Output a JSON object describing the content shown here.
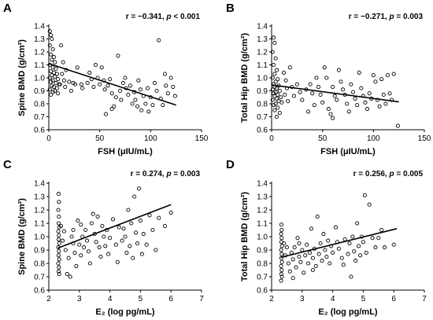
{
  "chart_data": [
    {
      "letter": "A",
      "type": "scatter",
      "xlabel": "FSH (μIU/mL)",
      "ylabel": "Spine BMD (g/cm²)",
      "stat": {
        "r": "r = −0.341, ",
        "p": "p",
        "rest": " < 0.001"
      },
      "xlim": [
        0,
        150
      ],
      "ylim": [
        0.6,
        1.4
      ],
      "xticks": [
        0,
        50,
        100,
        150
      ],
      "yticks": [
        0.6,
        0.7,
        0.8,
        0.9,
        1.0,
        1.1,
        1.2,
        1.3,
        1.4
      ],
      "fit": [
        [
          0,
          1.11
        ],
        [
          125,
          0.79
        ]
      ],
      "points": [
        [
          1,
          1.36
        ],
        [
          2,
          1.33
        ],
        [
          3,
          1.3
        ],
        [
          1,
          1.25
        ],
        [
          4,
          1.22
        ],
        [
          2,
          1.18
        ],
        [
          5,
          1.16
        ],
        [
          3,
          1.14
        ],
        [
          6,
          1.12
        ],
        [
          1,
          1.1
        ],
        [
          4,
          1.08
        ],
        [
          7,
          1.07
        ],
        [
          2,
          1.05
        ],
        [
          5,
          1.04
        ],
        [
          8,
          1.03
        ],
        [
          3,
          1.02
        ],
        [
          6,
          1.01
        ],
        [
          1,
          1.0
        ],
        [
          9,
          0.99
        ],
        [
          4,
          0.98
        ],
        [
          2,
          0.97
        ],
        [
          7,
          0.96
        ],
        [
          10,
          0.95
        ],
        [
          3,
          0.94
        ],
        [
          5,
          0.93
        ],
        [
          8,
          0.92
        ],
        [
          1,
          0.91
        ],
        [
          6,
          0.9
        ],
        [
          4,
          0.89
        ],
        [
          9,
          0.88
        ],
        [
          2,
          0.87
        ],
        [
          12,
          1.25
        ],
        [
          14,
          1.12
        ],
        [
          13,
          1.03
        ],
        [
          15,
          0.98
        ],
        [
          11,
          0.95
        ],
        [
          16,
          0.93
        ],
        [
          17,
          1.06
        ],
        [
          20,
          0.97
        ],
        [
          22,
          0.9
        ],
        [
          24,
          0.96
        ],
        [
          26,
          0.95
        ],
        [
          28,
          1.08
        ],
        [
          32,
          0.95
        ],
        [
          38,
          0.96
        ],
        [
          40,
          1.04
        ],
        [
          42,
          0.99
        ],
        [
          44,
          0.93
        ],
        [
          46,
          1.1
        ],
        [
          48,
          1.0
        ],
        [
          50,
          0.95
        ],
        [
          52,
          1.08
        ],
        [
          54,
          0.98
        ],
        [
          55,
          0.91
        ],
        [
          58,
          0.94
        ],
        [
          60,
          0.99
        ],
        [
          62,
          0.88
        ],
        [
          64,
          0.78
        ],
        [
          66,
          0.85
        ],
        [
          68,
          1.17
        ],
        [
          70,
          0.9
        ],
        [
          71,
          0.83
        ],
        [
          73,
          0.96
        ],
        [
          75,
          1.0
        ],
        [
          76,
          0.92
        ],
        [
          78,
          0.87
        ],
        [
          80,
          0.94
        ],
        [
          82,
          0.8
        ],
        [
          84,
          0.89
        ],
        [
          85,
          0.83
        ],
        [
          87,
          0.78
        ],
        [
          88,
          0.98
        ],
        [
          90,
          0.91
        ],
        [
          91,
          0.75
        ],
        [
          93,
          0.86
        ],
        [
          95,
          0.8
        ],
        [
          97,
          0.92
        ],
        [
          98,
          0.74
        ],
        [
          100,
          0.85
        ],
        [
          102,
          0.79
        ],
        [
          104,
          0.96
        ],
        [
          106,
          0.9
        ],
        [
          108,
          1.29
        ],
        [
          110,
          0.84
        ],
        [
          112,
          0.79
        ],
        [
          114,
          1.03
        ],
        [
          115,
          0.94
        ],
        [
          117,
          0.88
        ],
        [
          120,
          1.0
        ],
        [
          122,
          0.93
        ],
        [
          124,
          0.86
        ],
        [
          62,
          0.76
        ],
        [
          56,
          0.72
        ],
        [
          33,
          0.92
        ]
      ]
    },
    {
      "letter": "B",
      "type": "scatter",
      "xlabel": "FSH (μIU/mL)",
      "ylabel": "Total Hip BMD (g/cm²)",
      "stat": {
        "r": "r = −0.271, ",
        "p": "p",
        "rest": " = 0.003"
      },
      "xlim": [
        0,
        150
      ],
      "ylim": [
        0.6,
        1.4
      ],
      "xticks": [
        0,
        50,
        100,
        150
      ],
      "yticks": [
        0.6,
        0.7,
        0.8,
        0.9,
        1.0,
        1.1,
        1.2,
        1.3,
        1.4
      ],
      "fit": [
        [
          0,
          0.945
        ],
        [
          125,
          0.815
        ]
      ],
      "points": [
        [
          2,
          1.31
        ],
        [
          3,
          1.27
        ],
        [
          1,
          1.2
        ],
        [
          4,
          1.15
        ],
        [
          2,
          1.1
        ],
        [
          5,
          1.06
        ],
        [
          3,
          1.03
        ],
        [
          1,
          1.0
        ],
        [
          6,
          0.99
        ],
        [
          4,
          0.97
        ],
        [
          2,
          0.95
        ],
        [
          7,
          0.94
        ],
        [
          3,
          0.93
        ],
        [
          5,
          0.92
        ],
        [
          1,
          0.91
        ],
        [
          8,
          0.9
        ],
        [
          4,
          0.89
        ],
        [
          2,
          0.88
        ],
        [
          6,
          0.87
        ],
        [
          3,
          0.86
        ],
        [
          9,
          0.85
        ],
        [
          5,
          0.84
        ],
        [
          1,
          0.83
        ],
        [
          7,
          0.82
        ],
        [
          10,
          0.81
        ],
        [
          4,
          0.8
        ],
        [
          2,
          0.79
        ],
        [
          6,
          0.77
        ],
        [
          3,
          0.75
        ],
        [
          8,
          0.73
        ],
        [
          5,
          0.7
        ],
        [
          12,
          1.04
        ],
        [
          14,
          0.98
        ],
        [
          15,
          0.92
        ],
        [
          13,
          0.87
        ],
        [
          16,
          0.82
        ],
        [
          18,
          1.08
        ],
        [
          20,
          0.93
        ],
        [
          22,
          0.86
        ],
        [
          25,
          0.95
        ],
        [
          28,
          0.89
        ],
        [
          30,
          0.83
        ],
        [
          34,
          0.91
        ],
        [
          38,
          0.95
        ],
        [
          40,
          0.88
        ],
        [
          42,
          0.79
        ],
        [
          44,
          1.0
        ],
        [
          46,
          0.93
        ],
        [
          48,
          0.87
        ],
        [
          50,
          0.81
        ],
        [
          52,
          1.08
        ],
        [
          54,
          1.0
        ],
        [
          56,
          0.76
        ],
        [
          58,
          0.72
        ],
        [
          60,
          0.93
        ],
        [
          62,
          0.86
        ],
        [
          64,
          0.83
        ],
        [
          66,
          1.06
        ],
        [
          68,
          0.97
        ],
        [
          70,
          0.91
        ],
        [
          72,
          0.87
        ],
        [
          74,
          0.8
        ],
        [
          76,
          0.74
        ],
        [
          78,
          0.95
        ],
        [
          80,
          0.89
        ],
        [
          82,
          0.84
        ],
        [
          84,
          0.79
        ],
        [
          86,
          1.04
        ],
        [
          88,
          0.92
        ],
        [
          90,
          0.86
        ],
        [
          92,
          0.81
        ],
        [
          94,
          0.76
        ],
        [
          96,
          0.88
        ],
        [
          98,
          0.84
        ],
        [
          100,
          1.02
        ],
        [
          102,
          0.97
        ],
        [
          104,
          0.83
        ],
        [
          106,
          0.78
        ],
        [
          108,
          0.99
        ],
        [
          110,
          0.87
        ],
        [
          112,
          0.8
        ],
        [
          114,
          1.02
        ],
        [
          116,
          0.88
        ],
        [
          118,
          0.83
        ],
        [
          120,
          1.03
        ],
        [
          124,
          0.63
        ],
        [
          60,
          0.69
        ],
        [
          36,
          0.74
        ]
      ]
    },
    {
      "letter": "C",
      "type": "scatter",
      "xlabel": "E₂ (log pg/mL)",
      "ylabel": "Spine BMD (g/cm²)",
      "stat": {
        "r": "r = 0.274, ",
        "p": "p",
        "rest": " = 0.003"
      },
      "xlim": [
        2,
        7
      ],
      "ylim": [
        0.6,
        1.4
      ],
      "xticks": [
        2,
        3,
        4,
        5,
        6,
        7
      ],
      "yticks": [
        0.6,
        0.7,
        0.8,
        0.9,
        1.0,
        1.1,
        1.2,
        1.3,
        1.4
      ],
      "fit": [
        [
          2.3,
          0.915
        ],
        [
          6.0,
          1.24
        ]
      ],
      "points": [
        [
          2.32,
          1.32
        ],
        [
          2.33,
          1.26
        ],
        [
          2.31,
          1.2
        ],
        [
          2.33,
          1.15
        ],
        [
          2.32,
          1.1
        ],
        [
          2.34,
          1.07
        ],
        [
          2.31,
          1.04
        ],
        [
          2.33,
          1.01
        ],
        [
          2.32,
          0.98
        ],
        [
          2.34,
          0.95
        ],
        [
          2.31,
          0.92
        ],
        [
          2.33,
          0.89
        ],
        [
          2.32,
          0.86
        ],
        [
          2.34,
          0.83
        ],
        [
          2.31,
          0.8
        ],
        [
          2.33,
          0.77
        ],
        [
          2.32,
          0.74
        ],
        [
          2.34,
          0.72
        ],
        [
          2.4,
          1.08
        ],
        [
          2.45,
          0.97
        ],
        [
          2.5,
          1.04
        ],
        [
          2.55,
          0.9
        ],
        [
          2.6,
          0.72
        ],
        [
          2.65,
          0.84
        ],
        [
          2.7,
          0.7
        ],
        [
          2.75,
          1.0
        ],
        [
          2.8,
          0.95
        ],
        [
          2.85,
          0.88
        ],
        [
          2.9,
          0.78
        ],
        [
          2.95,
          1.12
        ],
        [
          3.0,
          0.94
        ],
        [
          3.05,
          0.86
        ],
        [
          3.1,
          1.0
        ],
        [
          3.15,
          0.92
        ],
        [
          3.2,
          1.05
        ],
        [
          3.25,
          0.97
        ],
        [
          3.3,
          0.89
        ],
        [
          3.35,
          0.8
        ],
        [
          3.4,
          1.1
        ],
        [
          3.45,
          1.17
        ],
        [
          3.5,
          1.02
        ],
        [
          3.55,
          0.96
        ],
        [
          3.6,
          1.15
        ],
        [
          3.65,
          0.92
        ],
        [
          3.7,
          0.85
        ],
        [
          3.75,
          1.08
        ],
        [
          3.8,
          1.0
        ],
        [
          3.85,
          0.93
        ],
        [
          3.9,
          1.05
        ],
        [
          3.95,
          0.87
        ],
        [
          4.0,
          0.99
        ],
        [
          4.1,
          1.13
        ],
        [
          4.2,
          0.94
        ],
        [
          4.3,
          1.07
        ],
        [
          4.4,
          0.97
        ],
        [
          4.5,
          1.0
        ],
        [
          4.55,
          0.88
        ],
        [
          4.6,
          1.2
        ],
        [
          4.65,
          0.93
        ],
        [
          4.7,
          1.1
        ],
        [
          4.75,
          0.84
        ],
        [
          4.8,
          1.3
        ],
        [
          4.85,
          1.03
        ],
        [
          4.9,
          0.95
        ],
        [
          4.95,
          1.36
        ],
        [
          5.0,
          1.12
        ],
        [
          5.05,
          0.87
        ],
        [
          5.1,
          1.02
        ],
        [
          5.2,
          0.94
        ],
        [
          5.3,
          1.16
        ],
        [
          5.4,
          1.05
        ],
        [
          5.5,
          0.9
        ],
        [
          5.6,
          1.14
        ],
        [
          5.8,
          1.08
        ],
        [
          6.0,
          1.18
        ],
        [
          2.8,
          1.05
        ],
        [
          3.05,
          1.09
        ],
        [
          4.25,
          0.81
        ],
        [
          4.45,
          1.06
        ]
      ]
    },
    {
      "letter": "D",
      "type": "scatter",
      "xlabel": "E₂ (log pg/mL)",
      "ylabel": "Total Hip BMD (g/cm²)",
      "stat": {
        "r": "r = 0.256, ",
        "p": "p",
        "rest": " = 0.005"
      },
      "xlim": [
        2,
        7
      ],
      "ylim": [
        0.6,
        1.4
      ],
      "xticks": [
        2,
        3,
        4,
        5,
        6,
        7
      ],
      "yticks": [
        0.6,
        0.7,
        0.8,
        0.9,
        1.0,
        1.1,
        1.2,
        1.3,
        1.4
      ],
      "fit": [
        [
          2.3,
          0.845
        ],
        [
          6.1,
          1.06
        ]
      ],
      "points": [
        [
          2.32,
          1.09
        ],
        [
          2.33,
          1.05
        ],
        [
          2.31,
          1.02
        ],
        [
          2.33,
          0.99
        ],
        [
          2.32,
          0.96
        ],
        [
          2.34,
          0.93
        ],
        [
          2.31,
          0.9
        ],
        [
          2.33,
          0.87
        ],
        [
          2.32,
          0.84
        ],
        [
          2.34,
          0.81
        ],
        [
          2.31,
          0.78
        ],
        [
          2.33,
          0.75
        ],
        [
          2.32,
          0.72
        ],
        [
          2.34,
          0.7
        ],
        [
          2.31,
          0.67
        ],
        [
          2.4,
          0.95
        ],
        [
          2.45,
          0.86
        ],
        [
          2.5,
          0.92
        ],
        [
          2.55,
          0.8
        ],
        [
          2.6,
          0.74
        ],
        [
          2.65,
          0.88
        ],
        [
          2.7,
          0.83
        ],
        [
          2.75,
          0.92
        ],
        [
          2.8,
          0.77
        ],
        [
          2.85,
          0.99
        ],
        [
          2.9,
          0.85
        ],
        [
          2.95,
          0.81
        ],
        [
          3.0,
          0.9
        ],
        [
          3.05,
          0.73
        ],
        [
          3.1,
          0.86
        ],
        [
          3.15,
          0.94
        ],
        [
          3.2,
          0.8
        ],
        [
          3.25,
          0.88
        ],
        [
          3.3,
          1.06
        ],
        [
          3.35,
          0.84
        ],
        [
          3.4,
          0.91
        ],
        [
          3.45,
          0.78
        ],
        [
          3.5,
          1.15
        ],
        [
          3.55,
          0.87
        ],
        [
          3.6,
          0.95
        ],
        [
          3.65,
          0.82
        ],
        [
          3.7,
          1.02
        ],
        [
          3.75,
          0.9
        ],
        [
          3.8,
          0.85
        ],
        [
          3.85,
          0.97
        ],
        [
          3.9,
          0.8
        ],
        [
          3.95,
          0.93
        ],
        [
          4.0,
          0.88
        ],
        [
          4.1,
          1.07
        ],
        [
          4.2,
          0.91
        ],
        [
          4.3,
          0.84
        ],
        [
          4.4,
          0.98
        ],
        [
          4.5,
          0.87
        ],
        [
          4.55,
          0.95
        ],
        [
          4.6,
          0.7
        ],
        [
          4.65,
          1.0
        ],
        [
          4.7,
          0.89
        ],
        [
          4.75,
          0.82
        ],
        [
          4.8,
          1.1
        ],
        [
          4.85,
          0.93
        ],
        [
          4.9,
          0.86
        ],
        [
          4.95,
          1.0
        ],
        [
          5.0,
          0.96
        ],
        [
          5.05,
          1.31
        ],
        [
          5.1,
          0.88
        ],
        [
          5.2,
          1.24
        ],
        [
          5.3,
          0.99
        ],
        [
          5.4,
          0.92
        ],
        [
          5.5,
          0.99
        ],
        [
          5.6,
          1.05
        ],
        [
          5.7,
          0.92
        ],
        [
          6.0,
          0.94
        ],
        [
          2.9,
          0.95
        ],
        [
          3.35,
          0.75
        ],
        [
          4.35,
          0.79
        ],
        [
          4.15,
          0.96
        ],
        [
          2.7,
          0.69
        ]
      ]
    }
  ]
}
